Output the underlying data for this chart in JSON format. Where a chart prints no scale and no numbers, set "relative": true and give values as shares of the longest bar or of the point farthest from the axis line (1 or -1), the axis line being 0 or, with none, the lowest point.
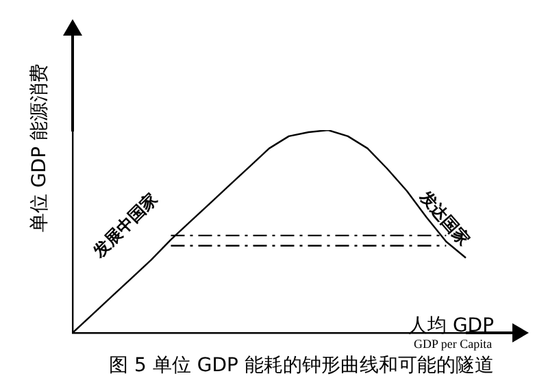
{
  "chart_data": {
    "type": "line",
    "title": "图 5  单位 GDP 能耗的钟形曲线和可能的隧道",
    "xlabel": "人均 GDP\nGDP per Capita",
    "ylabel": "单位 GDP 能源消费",
    "relative": true,
    "legend": false,
    "marker": "none",
    "line_style": "solid",
    "categories": [
      null,
      null,
      null,
      null,
      null,
      null,
      null,
      null,
      null,
      null,
      null,
      null,
      null,
      null,
      null,
      null,
      null,
      null,
      null,
      null,
      null
    ],
    "series": [
      {
        "color": "#000000",
        "values": [
          0,
          0.09,
          0.18,
          0.27,
          0.36,
          0.46,
          0.55,
          0.64,
          0.73,
          0.82,
          0.91,
          0.97,
          0.99,
          1,
          0.97,
          0.91,
          0.81,
          0.7,
          0.57,
          0.45,
          0.37
        ]
      },
      {
        "type": "line",
        "color": "#000000",
        "line_style": "dashed",
        "values": [
          null,
          null,
          null,
          null,
          null,
          0.48,
          0.48,
          0.48,
          0.48,
          0.48,
          0.48,
          0.48,
          0.48,
          0.48,
          0.48,
          0.48,
          0.48,
          0.48,
          0.48,
          0.48,
          null
        ]
      },
      {
        "type": "line",
        "color": "#000000",
        "line_style": "dashed",
        "values": [
          null,
          null,
          null,
          null,
          null,
          0.43,
          0.43,
          0.43,
          0.43,
          0.43,
          0.43,
          0.43,
          0.43,
          0.43,
          0.43,
          0.43,
          0.43,
          0.43,
          0.43,
          0.43,
          null
        ]
      }
    ],
    "annotations": [
      "发展中国家",
      "发达国家"
    ]
  }
}
